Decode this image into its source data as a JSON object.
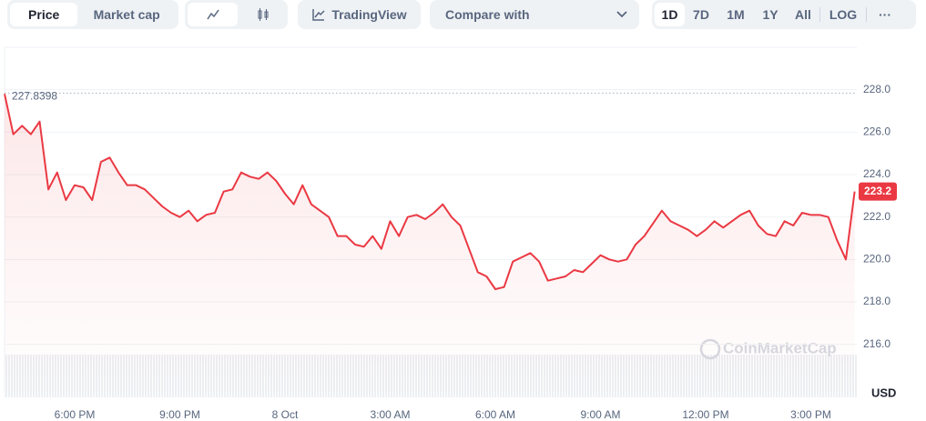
{
  "toolbar": {
    "view_tabs": [
      "Price",
      "Market cap"
    ],
    "tradingview": "TradingView",
    "compare": "Compare with",
    "ranges": [
      "1D",
      "7D",
      "1M",
      "1Y",
      "All"
    ],
    "log": "LOG",
    "more": "···"
  },
  "chart_data": {
    "type": "line",
    "color": "#ea3943",
    "categories": [
      null,
      null,
      null,
      null,
      null,
      null,
      null,
      null,
      "6:00 PM",
      null,
      null,
      null,
      null,
      null,
      null,
      null,
      null,
      null,
      null,
      null,
      "9:00 PM",
      null,
      null,
      null,
      null,
      null,
      null,
      null,
      null,
      null,
      null,
      null,
      "8 Oct",
      null,
      null,
      null,
      null,
      null,
      null,
      null,
      null,
      null,
      null,
      null,
      "3:00 AM",
      null,
      null,
      null,
      null,
      null,
      null,
      null,
      null,
      null,
      null,
      null,
      "6:00 AM",
      null,
      null,
      null,
      null,
      null,
      null,
      null,
      null,
      null,
      null,
      null,
      "9:00 AM",
      null,
      null,
      null,
      null,
      null,
      null,
      null,
      null,
      null,
      null,
      null,
      "12:00 PM",
      null,
      null,
      null,
      null,
      null,
      null,
      null,
      null,
      null,
      null,
      null,
      "3:00 PM",
      null,
      null,
      null,
      null,
      null
    ],
    "values": [
      227.8,
      225.9,
      226.3,
      225.9,
      226.5,
      223.3,
      224.1,
      222.8,
      223.5,
      223.4,
      222.8,
      224.6,
      224.8,
      224.1,
      223.5,
      223.5,
      223.3,
      222.9,
      222.5,
      222.2,
      222.0,
      222.3,
      221.8,
      222.1,
      222.2,
      223.2,
      223.3,
      224.1,
      223.9,
      223.8,
      224.1,
      223.7,
      223.1,
      222.6,
      223.5,
      222.6,
      222.3,
      222.0,
      221.1,
      221.1,
      220.7,
      220.6,
      221.1,
      220.5,
      221.8,
      221.1,
      222.0,
      222.1,
      221.9,
      222.2,
      222.6,
      222.0,
      221.6,
      220.5,
      219.4,
      219.2,
      218.6,
      218.7,
      219.9,
      220.1,
      220.3,
      219.9,
      219.0,
      219.1,
      219.2,
      219.5,
      219.4,
      219.8,
      220.2,
      220.0,
      219.9,
      220.0,
      220.7,
      221.1,
      221.7,
      222.3,
      221.8,
      221.6,
      221.4,
      221.1,
      221.4,
      221.8,
      221.5,
      221.8,
      222.1,
      222.3,
      221.6,
      221.2,
      221.1,
      221.8,
      221.6,
      222.2,
      222.1,
      222.1,
      222.0,
      220.9,
      220.0,
      223.2
    ],
    "ylim": [
      213.5,
      230
    ],
    "yticks": [
      {
        "value": 216,
        "label": "216.0"
      },
      {
        "value": 218,
        "label": "218.0"
      },
      {
        "value": 220,
        "label": "220.0"
      },
      {
        "value": 222,
        "label": "222.0"
      },
      {
        "value": 224,
        "label": "224.0"
      },
      {
        "value": 226,
        "label": "226.0"
      },
      {
        "value": 228,
        "label": "228.0"
      }
    ],
    "grid": true,
    "reference_value": 227.8398,
    "y_unit_label": "USD",
    "watermark": "CoinMarketCap"
  }
}
